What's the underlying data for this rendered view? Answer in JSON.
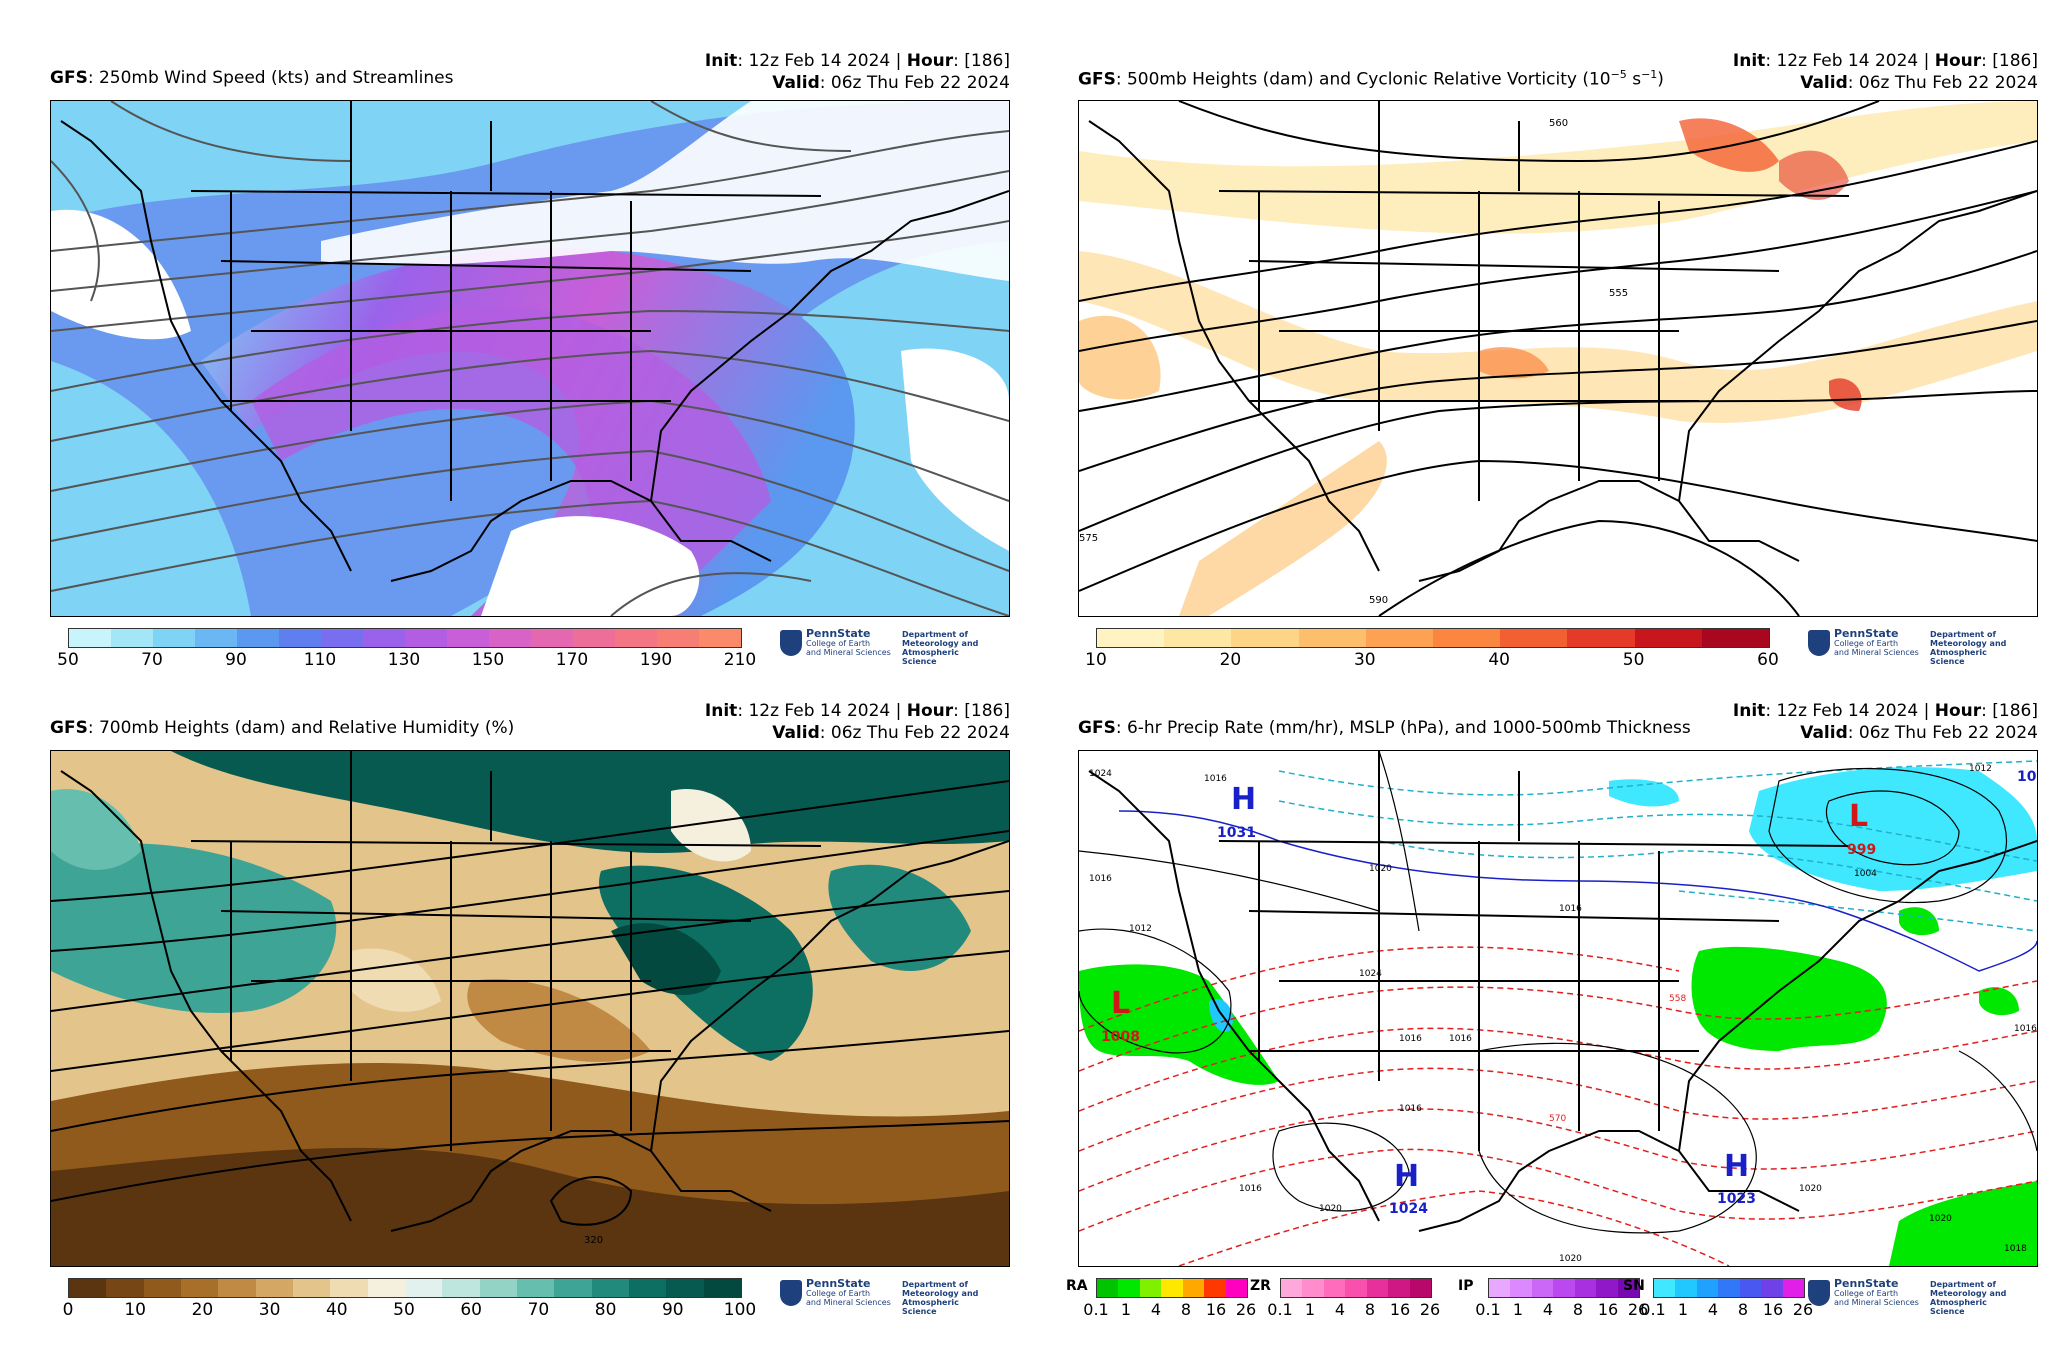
{
  "panels": [
    {
      "id": "p1",
      "model": "GFS",
      "title": ": 250mb Wind Speed (kts) and Streamlines",
      "init_label": "Init",
      "init_value": ": 12z Feb 14 2024 | ",
      "hour_label": "Hour",
      "hour_value": ": [186]",
      "valid_label": "Valid",
      "valid_value": ": 06z Thu Feb 22 2024",
      "colorbar": {
        "ticks": [
          "50",
          "70",
          "90",
          "110",
          "130",
          "150",
          "170",
          "190",
          "210"
        ],
        "colors": [
          "#c8f4fb",
          "#a3e6f8",
          "#7fd3f5",
          "#6ab7f3",
          "#5b98ef",
          "#5f7ff0",
          "#7a6ef0",
          "#9a62ea",
          "#b35ee2",
          "#c85fd8",
          "#d862c6",
          "#e468b0",
          "#ee6e9a",
          "#f47685",
          "#f77e74",
          "#fa8a6a"
        ]
      }
    },
    {
      "id": "p2",
      "model": "GFS",
      "title": ": 500mb Heights (dam) and Cyclonic Relative Vorticity (10",
      "title_exp": "−5",
      "title_unit": " s",
      "title_exp2": "−1",
      "title_close": ")",
      "init_label": "Init",
      "init_value": ": 12z Feb 14 2024 | ",
      "hour_label": "Hour",
      "hour_value": ": [186]",
      "valid_label": "Valid",
      "valid_value": ": 06z Thu Feb 22 2024",
      "contour_labels": [
        "560",
        "555",
        "575",
        "590"
      ],
      "colorbar": {
        "ticks": [
          "10",
          "20",
          "30",
          "40",
          "50",
          "60"
        ],
        "colors": [
          "#fff3c2",
          "#fee7a2",
          "#fdd586",
          "#fdbf6b",
          "#fda152",
          "#fb8640",
          "#f26032",
          "#e43a27",
          "#c8161e",
          "#a8071d"
        ]
      }
    },
    {
      "id": "p3",
      "model": "GFS",
      "title": ": 700mb Heights (dam) and Relative Humidity (%)",
      "init_label": "Init",
      "init_value": ": 12z Feb 14 2024 | ",
      "hour_label": "Hour",
      "hour_value": ": [186]",
      "valid_label": "Valid",
      "valid_value": ": 06z Thu Feb 22 2024",
      "contour_labels": [
        "320"
      ],
      "colorbar": {
        "ticks": [
          "0",
          "10",
          "20",
          "30",
          "40",
          "50",
          "60",
          "70",
          "80",
          "90",
          "100"
        ],
        "colors": [
          "#5a3510",
          "#764715",
          "#8f5a1c",
          "#a86f2a",
          "#c08a44",
          "#d4a864",
          "#e3c48b",
          "#efdcb3",
          "#f5efde",
          "#e2f1ee",
          "#bfe6de",
          "#93d3c6",
          "#66bfae",
          "#3ea596",
          "#218a7c",
          "#0d6e62",
          "#075a50",
          "#034940"
        ]
      }
    },
    {
      "id": "p4",
      "model": "GFS",
      "title": ": 6-hr Precip Rate (mm/hr), MSLP (hPa), and 1000-500mb Thickness",
      "init_label": "Init",
      "init_value": ": 12z Feb 14 2024 | ",
      "hour_label": "Hour",
      "hour_value": ": [186]",
      "valid_label": "Valid",
      "valid_value": ": 06z Thu Feb 22 2024",
      "pressure_centers": [
        {
          "type": "H",
          "value": "1031"
        },
        {
          "type": "L",
          "value": "999"
        },
        {
          "type": "L",
          "value": "1008"
        },
        {
          "type": "H",
          "value": "1024"
        },
        {
          "type": "H",
          "value": "1023"
        },
        {
          "type": "H",
          "value": "10"
        }
      ],
      "contour_labels": [
        "1024",
        "1016",
        "1012",
        "1020",
        "1016",
        "1004",
        "1012",
        "1016",
        "1024",
        "1016",
        "1016",
        "1020",
        "1016",
        "1020",
        "1020",
        "1016",
        "1016",
        "570",
        "558",
        "1020",
        "1018"
      ],
      "precip_types": [
        {
          "label": "RA",
          "ticks": [
            "0.1",
            "1",
            "4",
            "8",
            "16",
            "26"
          ],
          "colors": [
            "#00c400",
            "#00e800",
            "#7ff000",
            "#ffe800",
            "#ffa800",
            "#ff3800",
            "#ff00c0"
          ]
        },
        {
          "label": "ZR",
          "ticks": [
            "0.1",
            "1",
            "4",
            "8",
            "16",
            "26"
          ],
          "colors": [
            "#ffa8dc",
            "#ff8ccc",
            "#ff6cbc",
            "#f850ac",
            "#e8309c",
            "#d01884",
            "#b8086c"
          ]
        },
        {
          "label": "IP",
          "ticks": [
            "0.1",
            "1",
            "4",
            "8",
            "16",
            "26"
          ],
          "colors": [
            "#e8a8ff",
            "#dc88ff",
            "#cc68f8",
            "#bc48f0",
            "#a830e0",
            "#9018c8",
            "#7808b0"
          ]
        },
        {
          "label": "SN",
          "ticks": [
            "0.1",
            "1",
            "4",
            "8",
            "16",
            "26"
          ],
          "colors": [
            "#40e8ff",
            "#20c8ff",
            "#20a0ff",
            "#3078f8",
            "#4858f0",
            "#7040e8",
            "#e020e8"
          ]
        }
      ]
    }
  ],
  "logo": {
    "name": "PennState",
    "sub1": "College of Earth",
    "sub2": "and Mineral Sciences",
    "dept1": "Department of",
    "dept2": "Meteorology and",
    "dept3": "Atmospheric Science"
  }
}
